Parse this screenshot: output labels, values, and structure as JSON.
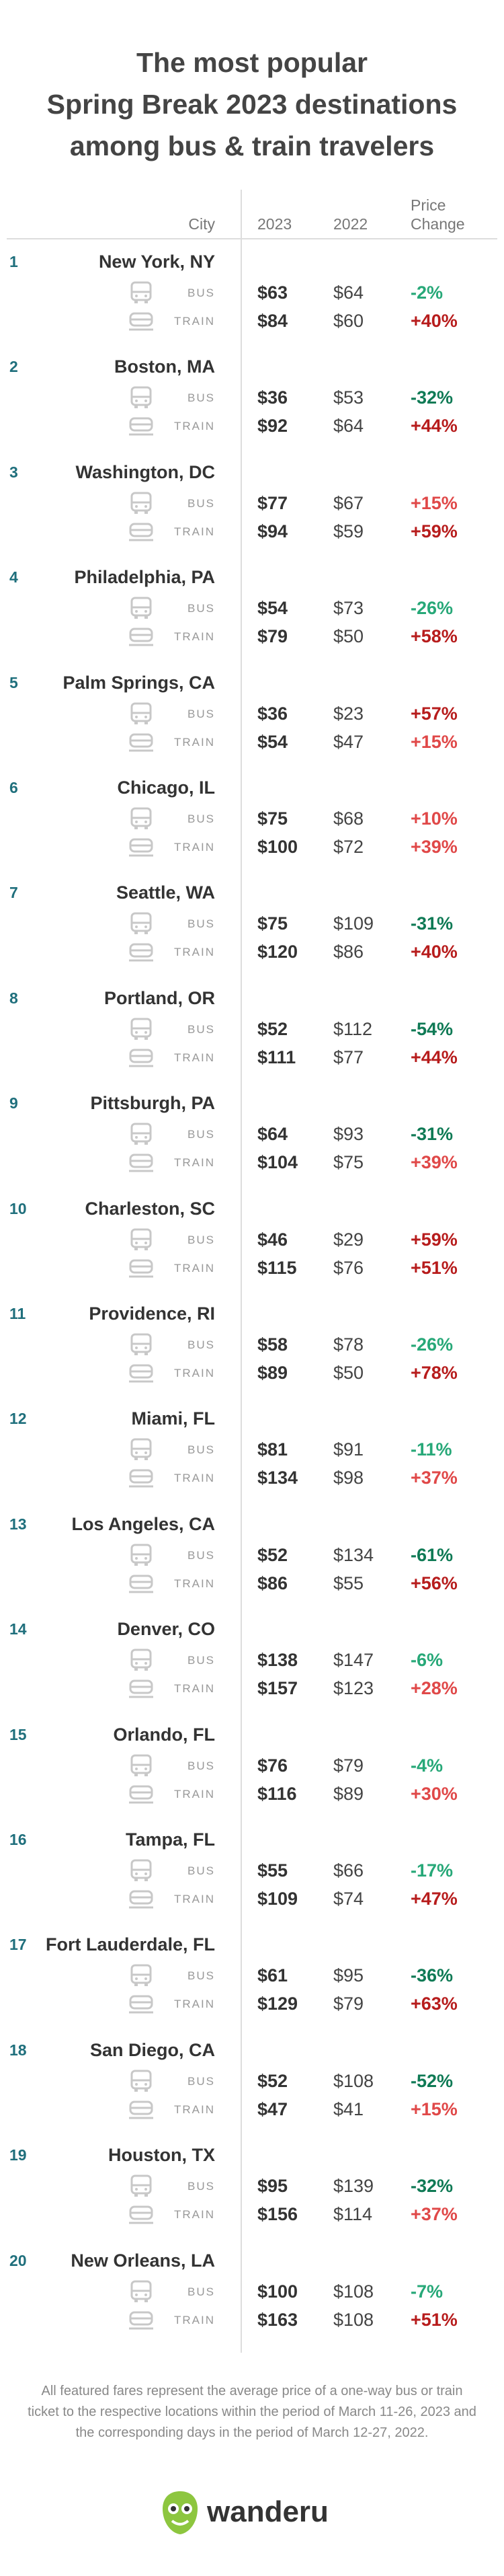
{
  "header": {
    "title": [
      "The most popular",
      "Spring Break 2023 destinations",
      "among bus & train travelers"
    ]
  },
  "table": {
    "columns": [
      "City",
      "2023",
      "2022",
      [
        "Price",
        "Change"
      ]
    ],
    "modes": [
      "BUS",
      "TRAIN"
    ],
    "rows": [
      {
        "rank": "1",
        "city": "New York, NY",
        "bus": [
          "$63",
          "$64",
          "-2%"
        ],
        "train": [
          "$84",
          "$60",
          "+40%"
        ]
      },
      {
        "rank": "2",
        "city": "Boston, MA",
        "bus": [
          "$36",
          "$53",
          "-32%"
        ],
        "train": [
          "$92",
          "$64",
          "+44%"
        ]
      },
      {
        "rank": "3",
        "city": "Washington, DC",
        "bus": [
          "$77",
          "$67",
          "+15%"
        ],
        "train": [
          "$94",
          "$59",
          "+59%"
        ]
      },
      {
        "rank": "4",
        "city": "Philadelphia, PA",
        "bus": [
          "$54",
          "$73",
          "-26%"
        ],
        "train": [
          "$79",
          "$50",
          "+58%"
        ]
      },
      {
        "rank": "5",
        "city": "Palm Springs, CA",
        "bus": [
          "$36",
          "$23",
          "+57%"
        ],
        "train": [
          "$54",
          "$47",
          "+15%"
        ]
      },
      {
        "rank": "6",
        "city": "Chicago, IL",
        "bus": [
          "$75",
          "$68",
          "+10%"
        ],
        "train": [
          "$100",
          "$72",
          "+39%"
        ]
      },
      {
        "rank": "7",
        "city": "Seattle, WA",
        "bus": [
          "$75",
          "$109",
          "-31%"
        ],
        "train": [
          "$120",
          "$86",
          "+40%"
        ]
      },
      {
        "rank": "8",
        "city": "Portland, OR",
        "bus": [
          "$52",
          "$112",
          "-54%"
        ],
        "train": [
          "$111",
          "$77",
          "+44%"
        ]
      },
      {
        "rank": "9",
        "city": "Pittsburgh, PA",
        "bus": [
          "$64",
          "$93",
          "-31%"
        ],
        "train": [
          "$104",
          "$75",
          "+39%"
        ]
      },
      {
        "rank": "10",
        "city": "Charleston, SC",
        "bus": [
          "$46",
          "$29",
          "+59%"
        ],
        "train": [
          "$115",
          "$76",
          "+51%"
        ]
      },
      {
        "rank": "11",
        "city": "Providence, RI",
        "bus": [
          "$58",
          "$78",
          "-26%"
        ],
        "train": [
          "$89",
          "$50",
          "+78%"
        ]
      },
      {
        "rank": "12",
        "city": "Miami, FL",
        "bus": [
          "$81",
          "$91",
          "-11%"
        ],
        "train": [
          "$134",
          "$98",
          "+37%"
        ]
      },
      {
        "rank": "13",
        "city": "Los Angeles, CA",
        "bus": [
          "$52",
          "$134",
          "-61%"
        ],
        "train": [
          "$86",
          "$55",
          "+56%"
        ]
      },
      {
        "rank": "14",
        "city": "Denver, CO",
        "bus": [
          "$138",
          "$147",
          "-6%"
        ],
        "train": [
          "$157",
          "$123",
          "+28%"
        ]
      },
      {
        "rank": "15",
        "city": "Orlando, FL",
        "bus": [
          "$76",
          "$79",
          "-4%"
        ],
        "train": [
          "$116",
          "$89",
          "+30%"
        ]
      },
      {
        "rank": "16",
        "city": "Tampa, FL",
        "bus": [
          "$55",
          "$66",
          "-17%"
        ],
        "train": [
          "$109",
          "$74",
          "+47%"
        ]
      },
      {
        "rank": "17",
        "city": "Fort Lauderdale, FL",
        "bus": [
          "$61",
          "$95",
          "-36%"
        ],
        "train": [
          "$129",
          "$79",
          "+63%"
        ]
      },
      {
        "rank": "18",
        "city": "San Diego, CA",
        "bus": [
          "$52",
          "$108",
          "-52%"
        ],
        "train": [
          "$47",
          "$41",
          "+15%"
        ]
      },
      {
        "rank": "19",
        "city": "Houston, TX",
        "bus": [
          "$95",
          "$139",
          "-32%"
        ],
        "train": [
          "$156",
          "$114",
          "+37%"
        ]
      },
      {
        "rank": "20",
        "city": "New Orleans, LA",
        "bus": [
          "$100",
          "$108",
          "-7%"
        ],
        "train": [
          "$163",
          "$108",
          "+51%"
        ]
      }
    ]
  },
  "footer": {
    "note": "All featured fares represent the average price of a one-way bus or train ticket to the respective locations within the period of March 11-26, 2023 and the corresponding days in the period of March 12-27, 2022.",
    "brand": "wanderu"
  }
}
